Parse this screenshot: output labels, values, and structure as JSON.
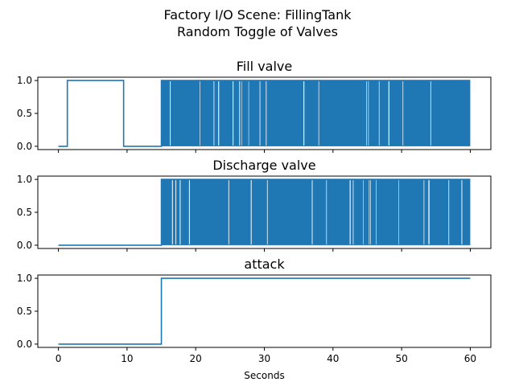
{
  "figure": {
    "title_line1": "Factory I/O Scene: FillingTank",
    "title_line2": "Random Toggle of Valves"
  },
  "colors": {
    "series": "#1f77b4"
  },
  "chart_data": [
    {
      "type": "line",
      "title": "Fill valve",
      "xlabel": "",
      "ylabel": "",
      "xlim": [
        -3,
        63
      ],
      "ylim": [
        -0.05,
        1.05
      ],
      "xticks": [
        0,
        10,
        20,
        30,
        40,
        50,
        60
      ],
      "yticks": [
        "0.0",
        "0.5",
        "1.0"
      ],
      "show_xtick_labels": false,
      "grid": false,
      "x": [
        0,
        1.3,
        1.3,
        9.5,
        9.5,
        15.0,
        15.0,
        60
      ],
      "y": [
        0,
        0,
        1,
        1,
        0,
        0,
        1,
        1
      ],
      "dense_toggle": {
        "start": 15.0,
        "end": 60,
        "low": 0,
        "high": 1
      }
    },
    {
      "type": "line",
      "title": "Discharge valve",
      "xlabel": "",
      "ylabel": "",
      "xlim": [
        -3,
        63
      ],
      "ylim": [
        -0.05,
        1.05
      ],
      "xticks": [
        0,
        10,
        20,
        30,
        40,
        50,
        60
      ],
      "yticks": [
        "0.0",
        "0.5",
        "1.0"
      ],
      "show_xtick_labels": false,
      "grid": false,
      "x": [
        0,
        15.0,
        15.0,
        60
      ],
      "y": [
        0,
        0,
        1,
        1
      ],
      "dense_toggle": {
        "start": 15.0,
        "end": 60,
        "low": 0,
        "high": 1
      }
    },
    {
      "type": "line",
      "title": "attack",
      "xlabel": "Seconds",
      "ylabel": "",
      "xlim": [
        -3,
        63
      ],
      "ylim": [
        -0.05,
        1.05
      ],
      "xticks": [
        0,
        10,
        20,
        30,
        40,
        50,
        60
      ],
      "xtick_labels": [
        "0",
        "10",
        "20",
        "30",
        "40",
        "50",
        "60"
      ],
      "yticks": [
        "0.0",
        "0.5",
        "1.0"
      ],
      "show_xtick_labels": true,
      "grid": false,
      "x": [
        0,
        15.0,
        15.0,
        60
      ],
      "y": [
        0,
        0,
        1,
        1
      ]
    }
  ]
}
